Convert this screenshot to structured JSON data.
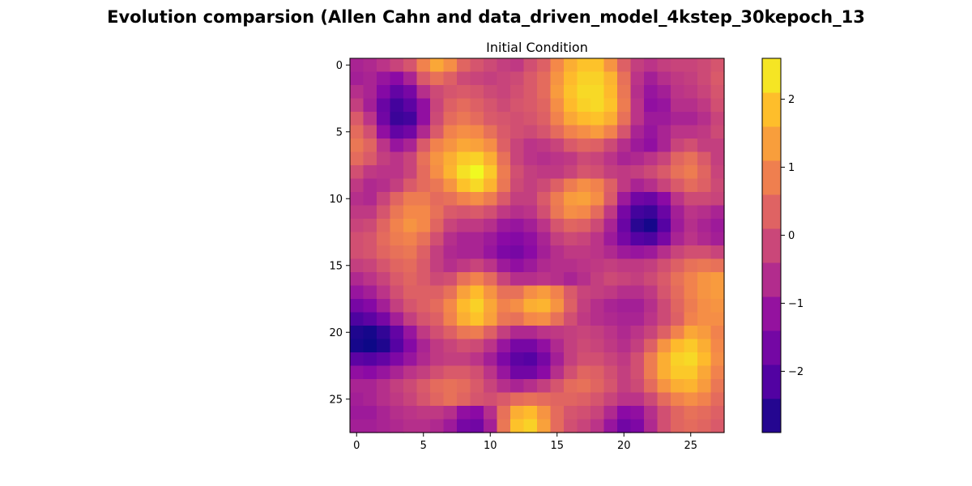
{
  "figure": {
    "suptitle": "Evolution comparsion (Allen Cahn and data_driven_model_4kstep_30kepoch_13"
  },
  "colors": {
    "colormap": "plasma",
    "text": "#000000",
    "background": "#ffffff"
  },
  "chart_data": {
    "type": "heatmap",
    "title": "Initial Condition",
    "xlabel": "",
    "ylabel": "",
    "grid": false,
    "rows": 28,
    "cols": 28,
    "xlim": [
      -0.5,
      27.5
    ],
    "ylim": [
      27.5,
      -0.5
    ],
    "x_ticks": [
      0,
      5,
      10,
      15,
      20,
      25
    ],
    "y_ticks": [
      0,
      5,
      10,
      15,
      20,
      25
    ],
    "x_tick_labels": [
      "0",
      "5",
      "10",
      "15",
      "20",
      "25"
    ],
    "y_tick_labels": [
      "0",
      "5",
      "10",
      "15",
      "20",
      "25"
    ],
    "colorbar": {
      "range": [
        -2.9,
        2.6
      ],
      "ticks": [
        -2,
        -1,
        0,
        1,
        2
      ],
      "tick_labels": [
        "−2",
        "−1",
        "0",
        "1",
        "2"
      ]
    },
    "values": [
      [
        -0.8,
        -0.7,
        -0.5,
        -0.2,
        0.1,
        0.9,
        1.5,
        1.1,
        0.4,
        0.1,
        -0.1,
        -0.3,
        -0.4,
        0.0,
        0.3,
        1.0,
        1.6,
        1.9,
        1.9,
        1.2,
        0.3,
        -0.3,
        -0.5,
        -0.3,
        -0.2,
        -0.2,
        -0.1,
        0.1
      ],
      [
        -0.9,
        -0.8,
        -1.1,
        -1.3,
        -0.8,
        0.2,
        0.6,
        0.3,
        -0.1,
        -0.2,
        -0.3,
        -0.2,
        -0.1,
        0.2,
        0.5,
        1.2,
        1.8,
        2.1,
        2.1,
        1.7,
        0.6,
        -0.5,
        -0.9,
        -0.6,
        -0.4,
        -0.3,
        -0.1,
        0.2
      ],
      [
        -0.6,
        -0.8,
        -1.4,
        -1.9,
        -1.6,
        -0.6,
        -0.1,
        0.1,
        0.2,
        0.1,
        -0.1,
        -0.2,
        0.0,
        0.2,
        0.5,
        1.3,
        1.9,
        2.2,
        2.2,
        1.8,
        0.7,
        -0.6,
        -1.1,
        -0.9,
        -0.5,
        -0.4,
        -0.2,
        0.1
      ],
      [
        -0.3,
        -0.9,
        -1.8,
        -2.3,
        -2.0,
        -1.2,
        -0.2,
        0.3,
        0.5,
        0.3,
        0.1,
        -0.1,
        0.1,
        0.2,
        0.4,
        1.1,
        1.8,
        2.1,
        2.2,
        1.9,
        0.8,
        -0.5,
        -1.2,
        -1.1,
        -0.6,
        -0.6,
        -0.4,
        0.0
      ],
      [
        0.2,
        -0.5,
        -1.7,
        -2.4,
        -2.3,
        -1.2,
        -0.1,
        0.5,
        0.7,
        0.5,
        0.2,
        0.1,
        0.0,
        0.1,
        0.3,
        0.9,
        1.5,
        1.8,
        1.9,
        1.6,
        0.6,
        -0.5,
        -1.0,
        -1.0,
        -0.8,
        -0.8,
        -0.6,
        -0.2
      ],
      [
        0.5,
        0.0,
        -1.2,
        -1.9,
        -1.7,
        -0.7,
        0.2,
        0.9,
        1.1,
        1.0,
        0.6,
        0.2,
        0.0,
        -0.1,
        0.1,
        0.5,
        0.9,
        1.1,
        1.3,
        0.9,
        0.1,
        -0.8,
        -1.1,
        -0.8,
        -0.5,
        -0.5,
        -0.4,
        -0.1
      ],
      [
        0.7,
        0.4,
        -0.5,
        -1.1,
        -0.8,
        0.2,
        0.9,
        1.2,
        1.5,
        1.4,
        1.1,
        0.3,
        -0.2,
        -0.5,
        -0.4,
        -0.2,
        0.2,
        0.4,
        0.3,
        -0.1,
        -0.6,
        -1.0,
        -1.2,
        -0.8,
        -0.2,
        0.0,
        -0.3,
        -0.3
      ],
      [
        0.5,
        0.2,
        -0.3,
        -0.5,
        -0.2,
        0.6,
        1.2,
        1.6,
        2.0,
        2.1,
        1.6,
        0.6,
        -0.2,
        -0.5,
        -0.6,
        -0.5,
        -0.4,
        -0.1,
        -0.2,
        -0.5,
        -0.8,
        -0.7,
        -0.5,
        -0.2,
        0.4,
        0.6,
        0.2,
        -0.3
      ],
      [
        0.0,
        -0.4,
        -0.5,
        -0.5,
        -0.2,
        0.5,
        1.1,
        1.7,
        2.3,
        2.6,
        2.0,
        0.8,
        0.0,
        -0.3,
        -0.4,
        -0.4,
        -0.2,
        0.1,
        0.0,
        -0.3,
        -0.4,
        -0.3,
        -0.1,
        0.2,
        0.6,
        0.8,
        0.4,
        -0.2
      ],
      [
        -0.4,
        -0.7,
        -0.6,
        -0.3,
        0.2,
        0.5,
        0.7,
        1.2,
        1.9,
        2.2,
        1.7,
        0.7,
        -0.1,
        -0.3,
        -0.1,
        0.3,
        0.8,
        1.1,
        0.9,
        0.3,
        -0.4,
        -0.8,
        -0.6,
        -0.2,
        0.2,
        0.5,
        0.3,
        -0.1
      ],
      [
        -0.6,
        -0.7,
        -0.2,
        0.4,
        0.8,
        0.8,
        0.5,
        0.6,
        0.9,
        1.1,
        0.8,
        0.2,
        -0.3,
        -0.3,
        0.2,
        0.8,
        1.3,
        1.4,
        1.1,
        0.2,
        -1.0,
        -1.7,
        -1.8,
        -1.3,
        -0.5,
        -0.1,
        -0.1,
        -0.2
      ],
      [
        -0.4,
        -0.4,
        0.1,
        0.7,
        1.0,
        1.0,
        0.6,
        0.2,
        0.1,
        0.2,
        0.0,
        -0.4,
        -0.6,
        -0.5,
        0.0,
        0.7,
        1.1,
        1.0,
        0.5,
        -0.4,
        -1.6,
        -2.3,
        -2.4,
        -1.8,
        -0.9,
        -0.5,
        -0.6,
        -0.8
      ],
      [
        -0.2,
        -0.1,
        0.4,
        0.9,
        1.2,
        1.0,
        0.4,
        -0.2,
        -0.4,
        -0.4,
        -0.6,
        -1.0,
        -1.1,
        -0.9,
        -0.5,
        0.1,
        0.4,
        0.3,
        -0.1,
        -0.8,
        -1.8,
        -2.6,
        -2.8,
        -2.1,
        -1.0,
        -0.6,
        -0.8,
        -1.0
      ],
      [
        0.0,
        0.1,
        0.5,
        0.8,
        0.9,
        0.6,
        0.0,
        -0.6,
        -0.8,
        -0.8,
        -1.0,
        -1.3,
        -1.4,
        -1.2,
        -0.8,
        -0.3,
        -0.1,
        -0.2,
        -0.5,
        -1.0,
        -1.6,
        -2.1,
        -2.2,
        -1.6,
        -0.8,
        -0.5,
        -0.7,
        -0.9
      ],
      [
        0.0,
        0.1,
        0.4,
        0.6,
        0.7,
        0.3,
        -0.3,
        -0.7,
        -0.8,
        -0.8,
        -1.1,
        -1.5,
        -1.6,
        -1.3,
        -0.9,
        -0.6,
        -0.4,
        -0.4,
        -0.5,
        -0.7,
        -1.0,
        -1.1,
        -1.0,
        -0.6,
        -0.2,
        0.0,
        0.0,
        -0.2
      ],
      [
        -0.3,
        -0.2,
        0.1,
        0.4,
        0.5,
        0.2,
        -0.3,
        -0.6,
        -0.4,
        -0.2,
        -0.5,
        -1.0,
        -1.2,
        -1.0,
        -0.7,
        -0.6,
        -0.6,
        -0.5,
        -0.4,
        -0.3,
        -0.4,
        -0.4,
        -0.3,
        0.0,
        0.3,
        0.6,
        0.7,
        0.6
      ],
      [
        -0.7,
        -0.5,
        -0.2,
        0.2,
        0.4,
        0.2,
        -0.1,
        0.0,
        0.6,
        0.9,
        0.5,
        -0.2,
        -0.6,
        -0.6,
        -0.5,
        -0.6,
        -0.8,
        -0.6,
        -0.3,
        -0.1,
        -0.2,
        -0.3,
        -0.1,
        0.2,
        0.6,
        0.9,
        1.2,
        1.3
      ],
      [
        -1.1,
        -0.9,
        -0.5,
        0.0,
        0.3,
        0.3,
        0.3,
        0.6,
        1.4,
        1.8,
        1.2,
        0.6,
        0.6,
        1.1,
        1.3,
        0.9,
        0.2,
        -0.2,
        -0.3,
        -0.4,
        -0.6,
        -0.6,
        -0.4,
        0.1,
        0.5,
        0.9,
        1.2,
        1.3
      ],
      [
        -1.6,
        -1.4,
        -0.9,
        -0.3,
        0.1,
        0.3,
        0.5,
        1.0,
        1.8,
        2.1,
        1.5,
        0.9,
        1.1,
        1.6,
        1.7,
        1.2,
        0.3,
        -0.3,
        -0.6,
        -0.8,
        -0.9,
        -0.9,
        -0.6,
        -0.1,
        0.4,
        0.8,
        1.1,
        1.2
      ],
      [
        -2.2,
        -2.0,
        -1.6,
        -0.9,
        -0.3,
        0.1,
        0.3,
        0.9,
        1.6,
        1.9,
        1.4,
        0.7,
        0.6,
        1.0,
        1.1,
        0.6,
        0.0,
        -0.4,
        -0.6,
        -0.7,
        -0.8,
        -0.8,
        -0.5,
        -0.1,
        0.3,
        0.9,
        1.1,
        1.1
      ],
      [
        -2.7,
        -2.8,
        -2.5,
        -1.9,
        -1.1,
        -0.4,
        0.0,
        0.3,
        0.7,
        0.8,
        0.3,
        -0.3,
        -0.7,
        -0.7,
        -0.5,
        -0.4,
        -0.3,
        -0.2,
        -0.3,
        -0.5,
        -0.7,
        -0.5,
        -0.2,
        0.3,
        0.9,
        1.5,
        1.3,
        0.9
      ],
      [
        -2.8,
        -2.9,
        -2.7,
        -2.1,
        -1.4,
        -0.8,
        -0.4,
        -0.2,
        0.0,
        -0.1,
        -0.5,
        -1.1,
        -1.6,
        -1.6,
        -1.2,
        -0.7,
        -0.3,
        -0.1,
        -0.2,
        -0.4,
        -0.6,
        -0.3,
        0.3,
        1.2,
        1.8,
        2.0,
        1.6,
        1.0
      ],
      [
        -2.0,
        -2.1,
        -1.9,
        -1.5,
        -1.1,
        -0.7,
        -0.4,
        -0.3,
        -0.3,
        -0.5,
        -0.9,
        -1.5,
        -2.0,
        -2.1,
        -1.6,
        -0.9,
        -0.3,
        0.0,
        0.0,
        -0.2,
        -0.4,
        0.0,
        0.8,
        1.6,
        2.1,
        2.2,
        1.8,
        1.1
      ],
      [
        -1.2,
        -1.3,
        -1.1,
        -0.8,
        -0.5,
        -0.3,
        0.0,
        0.2,
        0.2,
        0.0,
        -0.5,
        -1.1,
        -1.7,
        -1.7,
        -1.3,
        -0.6,
        0.0,
        0.4,
        0.3,
        0.0,
        -0.3,
        0.0,
        0.8,
        1.6,
        2.0,
        2.0,
        1.5,
        0.9
      ],
      [
        -0.8,
        -0.8,
        -0.6,
        -0.3,
        -0.1,
        0.2,
        0.5,
        0.6,
        0.5,
        0.2,
        -0.2,
        -0.6,
        -0.8,
        -0.6,
        -0.3,
        0.1,
        0.5,
        0.6,
        0.4,
        0.1,
        -0.3,
        -0.1,
        0.5,
        1.2,
        1.6,
        1.7,
        1.3,
        0.7
      ],
      [
        -0.9,
        -0.8,
        -0.6,
        -0.4,
        -0.2,
        0.1,
        0.4,
        0.6,
        0.4,
        0.1,
        0.0,
        0.2,
        0.5,
        0.6,
        0.5,
        0.4,
        0.4,
        0.3,
        0.1,
        -0.2,
        -0.5,
        -0.5,
        -0.1,
        0.5,
        0.9,
        1.1,
        0.9,
        0.5
      ],
      [
        -1.0,
        -1.0,
        -0.8,
        -0.6,
        -0.5,
        -0.4,
        -0.4,
        -0.6,
        -1.2,
        -1.3,
        -0.6,
        0.6,
        1.6,
        1.8,
        1.2,
        0.5,
        0.1,
        0.0,
        -0.2,
        -0.7,
        -1.3,
        -1.2,
        -0.6,
        0.0,
        0.4,
        0.6,
        0.5,
        0.3
      ],
      [
        -0.9,
        -0.9,
        -0.8,
        -0.7,
        -0.6,
        -0.6,
        -0.7,
        -1.0,
        -1.6,
        -1.7,
        -0.9,
        0.7,
        1.9,
        2.1,
        1.4,
        0.5,
        0.0,
        -0.2,
        -0.5,
        -1.1,
        -1.7,
        -1.5,
        -0.7,
        0.0,
        0.4,
        0.5,
        0.4,
        0.2
      ]
    ]
  }
}
